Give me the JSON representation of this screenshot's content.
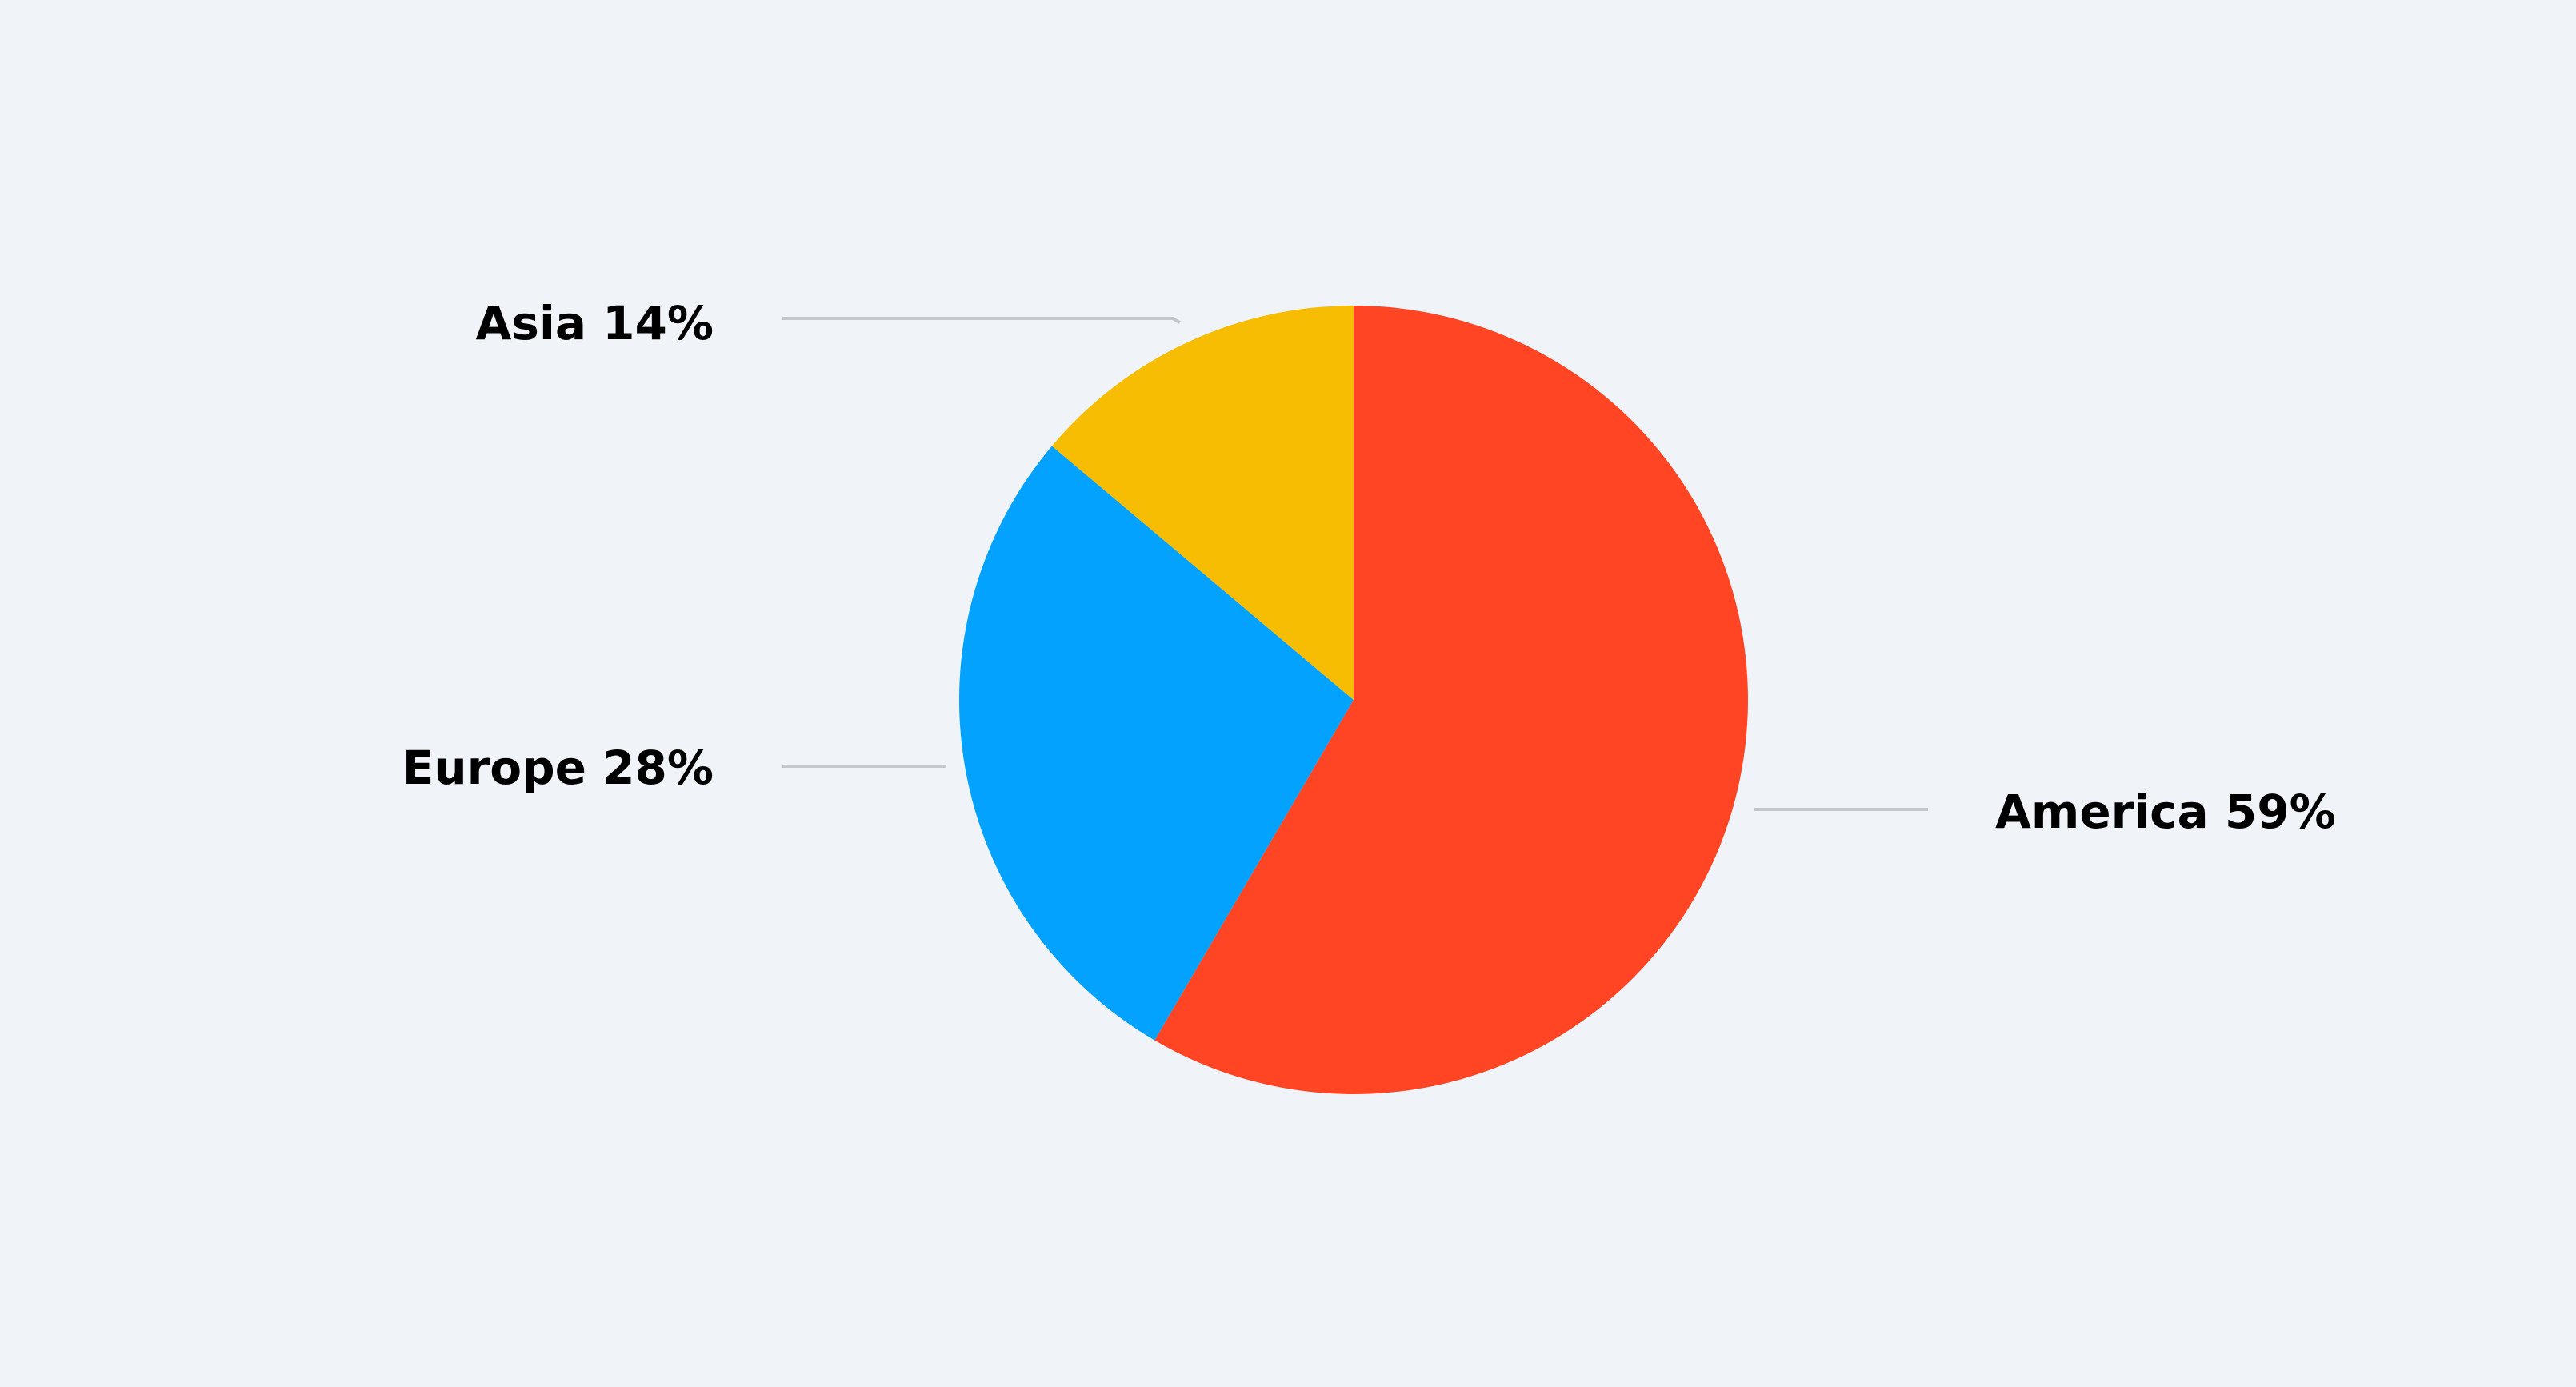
{
  "chart_data": {
    "type": "pie",
    "start_angle_deg": 0,
    "direction": "clockwise",
    "slices": [
      {
        "label": "America 59%",
        "name": "America",
        "value": 59,
        "color": "#ff4524"
      },
      {
        "label": "Europe 28%",
        "name": "Europe",
        "value": 28,
        "color": "#03a2ff"
      },
      {
        "label": "Asia 14%",
        "name": "Asia",
        "value": 14,
        "color": "#f7bd03"
      }
    ],
    "legend": "none",
    "labels": "outside with leader lines"
  }
}
